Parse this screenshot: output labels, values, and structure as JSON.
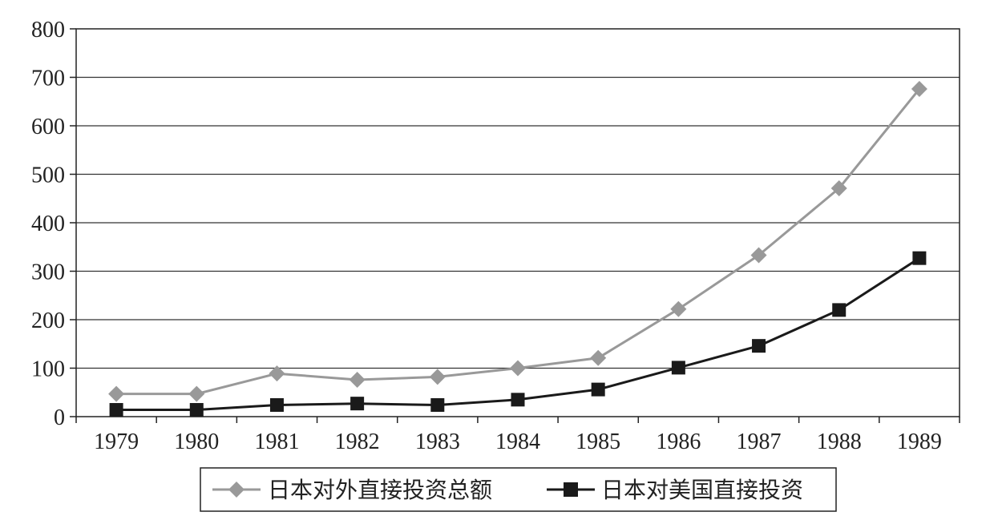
{
  "chart_data": {
    "type": "line",
    "title": "",
    "xlabel": "",
    "ylabel": "",
    "categories": [
      "1979",
      "1980",
      "1981",
      "1982",
      "1983",
      "1984",
      "1985",
      "1986",
      "1987",
      "1988",
      "1989"
    ],
    "ylim": [
      0,
      800
    ],
    "yticks": [
      0,
      100,
      200,
      300,
      400,
      500,
      600,
      700,
      800
    ],
    "grid": "horizontal",
    "legend_position": "bottom-center",
    "series": [
      {
        "name": "日本对外直接投资总额",
        "marker": "diamond",
        "color": "#999999",
        "values": [
          47,
          47,
          89,
          76,
          82,
          100,
          121,
          222,
          333,
          471,
          676
        ]
      },
      {
        "name": "日本对美国直接投资",
        "marker": "square",
        "color": "#1a1a1a",
        "values": [
          14,
          14,
          24,
          27,
          24,
          35,
          56,
          101,
          146,
          220,
          327
        ]
      }
    ]
  }
}
